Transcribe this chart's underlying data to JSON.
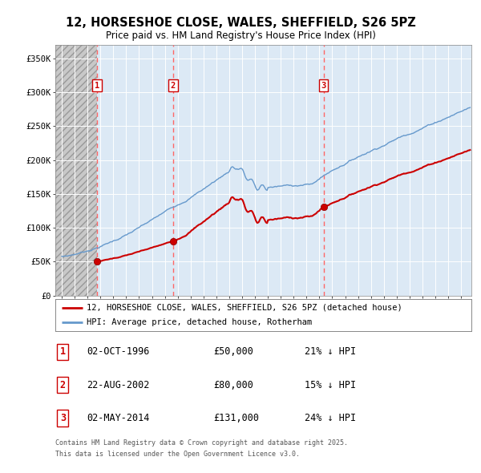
{
  "title_line1": "12, HORSESHOE CLOSE, WALES, SHEFFIELD, S26 5PZ",
  "title_line2": "Price paid vs. HM Land Registry's House Price Index (HPI)",
  "background_color": "#ffffff",
  "plot_bg_color": "#dce9f5",
  "grid_color": "#ffffff",
  "sale_dates": [
    1996.75,
    2002.64,
    2014.33
  ],
  "sale_prices": [
    50000,
    80000,
    131000
  ],
  "sale_labels": [
    "1",
    "2",
    "3"
  ],
  "sale_date_strings": [
    "02-OCT-1996",
    "22-AUG-2002",
    "02-MAY-2014"
  ],
  "sale_price_strings": [
    "£50,000",
    "£80,000",
    "£131,000"
  ],
  "sale_hpi_strings": [
    "21% ↓ HPI",
    "15% ↓ HPI",
    "24% ↓ HPI"
  ],
  "red_line_color": "#cc0000",
  "blue_line_color": "#6699cc",
  "marker_color": "#cc0000",
  "dashed_line_color": "#ff6666",
  "ylim": [
    0,
    370000
  ],
  "yticks": [
    0,
    50000,
    100000,
    150000,
    200000,
    250000,
    300000,
    350000
  ],
  "ytick_labels": [
    "£0",
    "£50K",
    "£100K",
    "£150K",
    "£200K",
    "£250K",
    "£300K",
    "£350K"
  ],
  "xlim_start": 1993.5,
  "xlim_end": 2025.8,
  "footer_line1": "Contains HM Land Registry data © Crown copyright and database right 2025.",
  "footer_line2": "This data is licensed under the Open Government Licence v3.0.",
  "legend_label_red": "12, HORSESHOE CLOSE, WALES, SHEFFIELD, S26 5PZ (detached house)",
  "legend_label_blue": "HPI: Average price, detached house, Rotherham"
}
